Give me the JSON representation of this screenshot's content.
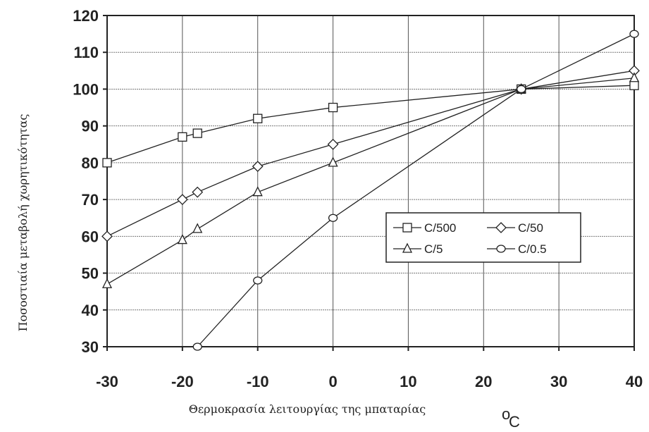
{
  "chart_data": {
    "type": "line",
    "xlabel": "Θερμοκρασία λειτουργίας της μπαταρίας",
    "xunit_main": "C",
    "xunit_prefix": "o",
    "ylabel": "Ποσοστιαία μεταβολή χωρητικότητας",
    "xlim": [
      -30,
      40
    ],
    "ylim": [
      30,
      120
    ],
    "xticks": [
      -30,
      -20,
      -10,
      0,
      10,
      20,
      30,
      40
    ],
    "yticks": [
      30,
      40,
      50,
      60,
      70,
      80,
      90,
      100,
      110,
      120
    ],
    "grid": true,
    "legend_position": "center-right",
    "series": [
      {
        "name": "C/500",
        "marker": "square",
        "x": [
          -30,
          -20,
          -18,
          -10,
          0,
          25,
          40
        ],
        "y": [
          80,
          87,
          88,
          92,
          95,
          100,
          101
        ]
      },
      {
        "name": "C/50",
        "marker": "diamond",
        "x": [
          -30,
          -20,
          -18,
          -10,
          0,
          25,
          40
        ],
        "y": [
          60,
          70,
          72,
          79,
          85,
          100,
          105
        ]
      },
      {
        "name": "C/5",
        "marker": "triangle",
        "x": [
          -30,
          -20,
          -18,
          -10,
          0,
          25,
          40
        ],
        "y": [
          47,
          59,
          62,
          72,
          80,
          100,
          103
        ]
      },
      {
        "name": "C/0.5",
        "marker": "circle",
        "x": [
          -18,
          -10,
          0,
          25,
          40
        ],
        "y": [
          30,
          48,
          65,
          100,
          115
        ]
      }
    ]
  }
}
